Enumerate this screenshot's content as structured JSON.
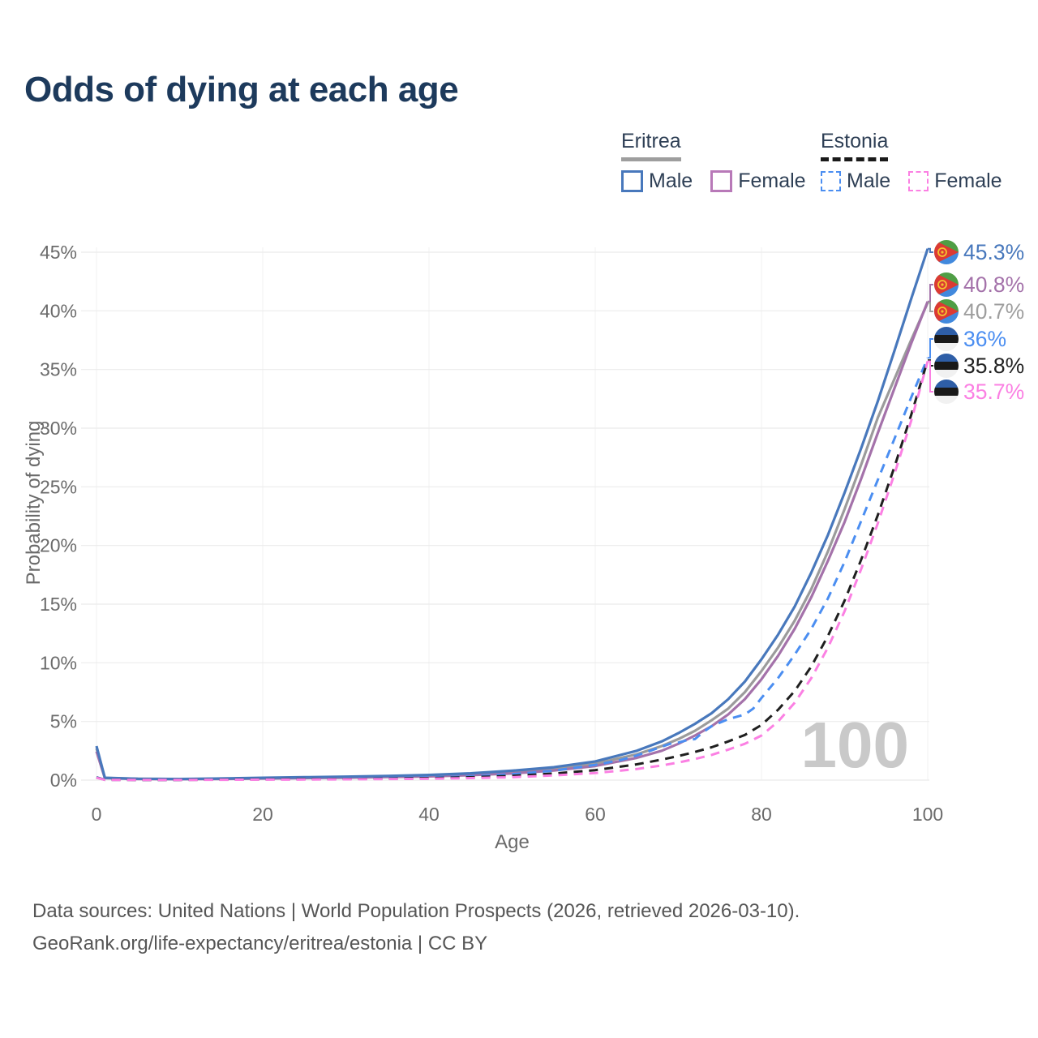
{
  "title": "Odds of dying at each age",
  "legend": {
    "groups": [
      {
        "country": "Eritrea",
        "line_style": "solid",
        "underline_color": "#9e9e9e",
        "items": [
          {
            "label": "Male",
            "color": "#4878bc",
            "dashed": false
          },
          {
            "label": "Female",
            "color": "#b879b8",
            "dashed": false
          }
        ]
      },
      {
        "country": "Estonia",
        "line_style": "dashed",
        "underline_color": "#1a1a1a",
        "items": [
          {
            "label": "Male",
            "color": "#4b8ef1",
            "dashed": true
          },
          {
            "label": "Female",
            "color": "#fb80e3",
            "dashed": true
          }
        ]
      }
    ]
  },
  "watermark": "100",
  "footer": {
    "line1": "Data sources: United Nations | World Population Prospects (2026, retrieved 2026-03-10).",
    "line2": "GeoRank.org/life-expectancy/eritrea/estonia | CC BY"
  },
  "chart_data": {
    "type": "line",
    "title": "Odds of dying at each age",
    "xlabel": "Age",
    "ylabel": "Probability of dying",
    "xlim": [
      0,
      100
    ],
    "ylim_pct": [
      0,
      45
    ],
    "x_ticks": [
      0,
      20,
      40,
      60,
      80,
      100
    ],
    "y_ticks_pct": [
      0,
      5,
      10,
      15,
      20,
      25,
      30,
      35,
      40,
      45
    ],
    "grid": "horizontal-strong-vertical-faint",
    "legend_position": "top-right",
    "series": [
      {
        "name": "Eritrea Both",
        "country": "Eritrea",
        "style": "solid",
        "color": "#9b9b9b",
        "points": [
          [
            0,
            2.7
          ],
          [
            1,
            0.19
          ],
          [
            5,
            0.11
          ],
          [
            10,
            0.09
          ],
          [
            15,
            0.12
          ],
          [
            20,
            0.17
          ],
          [
            25,
            0.21
          ],
          [
            30,
            0.26
          ],
          [
            35,
            0.31
          ],
          [
            40,
            0.38
          ],
          [
            45,
            0.5
          ],
          [
            50,
            0.68
          ],
          [
            55,
            0.95
          ],
          [
            60,
            1.4
          ],
          [
            65,
            2.2
          ],
          [
            68,
            2.9
          ],
          [
            70,
            3.5
          ],
          [
            72,
            4.2
          ],
          [
            74,
            5.1
          ],
          [
            76,
            6.1
          ],
          [
            78,
            7.5
          ],
          [
            80,
            9.3
          ],
          [
            82,
            11.3
          ],
          [
            84,
            13.6
          ],
          [
            86,
            16.3
          ],
          [
            88,
            19.5
          ],
          [
            90,
            23.1
          ],
          [
            92,
            26.9
          ],
          [
            94,
            30.9
          ],
          [
            96,
            34.2
          ],
          [
            98,
            37.5
          ],
          [
            100,
            40.7
          ]
        ]
      },
      {
        "name": "Eritrea Female",
        "country": "Eritrea",
        "style": "solid",
        "color": "#a472aa",
        "points": [
          [
            0,
            2.45
          ],
          [
            1,
            0.17
          ],
          [
            5,
            0.1
          ],
          [
            10,
            0.08
          ],
          [
            15,
            0.1
          ],
          [
            20,
            0.14
          ],
          [
            25,
            0.17
          ],
          [
            30,
            0.21
          ],
          [
            35,
            0.26
          ],
          [
            40,
            0.32
          ],
          [
            45,
            0.42
          ],
          [
            50,
            0.57
          ],
          [
            55,
            0.82
          ],
          [
            60,
            1.2
          ],
          [
            65,
            1.9
          ],
          [
            68,
            2.5
          ],
          [
            70,
            3.1
          ],
          [
            72,
            3.8
          ],
          [
            74,
            4.6
          ],
          [
            76,
            5.6
          ],
          [
            78,
            6.9
          ],
          [
            80,
            8.6
          ],
          [
            82,
            10.6
          ],
          [
            84,
            12.9
          ],
          [
            86,
            15.6
          ],
          [
            88,
            18.7
          ],
          [
            90,
            22.0
          ],
          [
            92,
            25.7
          ],
          [
            94,
            29.6
          ],
          [
            96,
            33.4
          ],
          [
            98,
            37.2
          ],
          [
            100,
            40.8
          ]
        ]
      },
      {
        "name": "Eritrea Male",
        "country": "Eritrea",
        "style": "solid",
        "color": "#4878bc",
        "points": [
          [
            0,
            2.9
          ],
          [
            1,
            0.2
          ],
          [
            5,
            0.12
          ],
          [
            10,
            0.1
          ],
          [
            15,
            0.14
          ],
          [
            20,
            0.2
          ],
          [
            25,
            0.25
          ],
          [
            30,
            0.3
          ],
          [
            35,
            0.36
          ],
          [
            40,
            0.44
          ],
          [
            45,
            0.58
          ],
          [
            50,
            0.8
          ],
          [
            55,
            1.1
          ],
          [
            60,
            1.6
          ],
          [
            65,
            2.5
          ],
          [
            68,
            3.3
          ],
          [
            70,
            4.0
          ],
          [
            72,
            4.8
          ],
          [
            74,
            5.7
          ],
          [
            76,
            6.9
          ],
          [
            78,
            8.4
          ],
          [
            80,
            10.3
          ],
          [
            82,
            12.4
          ],
          [
            84,
            14.8
          ],
          [
            86,
            17.7
          ],
          [
            88,
            20.9
          ],
          [
            90,
            24.5
          ],
          [
            92,
            28.3
          ],
          [
            94,
            32.3
          ],
          [
            96,
            36.6
          ],
          [
            98,
            41.0
          ],
          [
            100,
            45.3
          ]
        ]
      },
      {
        "name": "Estonia Male",
        "country": "Estonia",
        "style": "dashed",
        "color": "#4b8ef1",
        "points": [
          [
            0,
            0.25
          ],
          [
            1,
            0.03
          ],
          [
            5,
            0.02
          ],
          [
            10,
            0.02
          ],
          [
            15,
            0.05
          ],
          [
            20,
            0.08
          ],
          [
            25,
            0.1
          ],
          [
            30,
            0.13
          ],
          [
            35,
            0.17
          ],
          [
            40,
            0.22
          ],
          [
            45,
            0.32
          ],
          [
            50,
            0.5
          ],
          [
            55,
            0.8
          ],
          [
            60,
            1.3
          ],
          [
            63,
            1.7
          ],
          [
            65,
            2.1
          ],
          [
            67,
            2.6
          ],
          [
            69,
            3.1
          ],
          [
            70,
            3.2
          ],
          [
            71,
            3.4
          ],
          [
            72,
            3.5
          ],
          [
            73,
            4.1
          ],
          [
            74,
            4.6
          ],
          [
            75,
            4.9
          ],
          [
            76,
            5.2
          ],
          [
            77,
            5.4
          ],
          [
            78,
            5.6
          ],
          [
            79,
            6.1
          ],
          [
            80,
            7.0
          ],
          [
            82,
            8.7
          ],
          [
            84,
            10.7
          ],
          [
            86,
            12.9
          ],
          [
            88,
            15.5
          ],
          [
            90,
            18.6
          ],
          [
            92,
            22.1
          ],
          [
            94,
            25.6
          ],
          [
            96,
            29.1
          ],
          [
            98,
            32.6
          ],
          [
            100,
            36.0
          ]
        ]
      },
      {
        "name": "Estonia Both",
        "country": "Estonia",
        "style": "dashed",
        "color": "#1f1f1f",
        "points": [
          [
            0,
            0.22
          ],
          [
            1,
            0.03
          ],
          [
            5,
            0.02
          ],
          [
            10,
            0.02
          ],
          [
            15,
            0.04
          ],
          [
            20,
            0.06
          ],
          [
            25,
            0.08
          ],
          [
            30,
            0.1
          ],
          [
            35,
            0.13
          ],
          [
            40,
            0.17
          ],
          [
            45,
            0.24
          ],
          [
            50,
            0.36
          ],
          [
            55,
            0.56
          ],
          [
            60,
            0.85
          ],
          [
            65,
            1.35
          ],
          [
            68,
            1.75
          ],
          [
            70,
            2.05
          ],
          [
            72,
            2.4
          ],
          [
            74,
            2.8
          ],
          [
            76,
            3.3
          ],
          [
            78,
            3.85
          ],
          [
            80,
            4.7
          ],
          [
            82,
            6.0
          ],
          [
            84,
            7.6
          ],
          [
            86,
            9.7
          ],
          [
            88,
            12.3
          ],
          [
            90,
            15.3
          ],
          [
            92,
            18.8
          ],
          [
            94,
            22.6
          ],
          [
            96,
            26.7
          ],
          [
            98,
            31.1
          ],
          [
            100,
            35.8
          ]
        ]
      },
      {
        "name": "Estonia Female",
        "country": "Estonia",
        "style": "dashed",
        "color": "#fb80e3",
        "points": [
          [
            0,
            0.2
          ],
          [
            1,
            0.02
          ],
          [
            5,
            0.015
          ],
          [
            10,
            0.015
          ],
          [
            15,
            0.03
          ],
          [
            20,
            0.04
          ],
          [
            25,
            0.05
          ],
          [
            30,
            0.07
          ],
          [
            35,
            0.09
          ],
          [
            40,
            0.12
          ],
          [
            45,
            0.17
          ],
          [
            50,
            0.25
          ],
          [
            55,
            0.4
          ],
          [
            60,
            0.6
          ],
          [
            65,
            0.95
          ],
          [
            68,
            1.25
          ],
          [
            70,
            1.5
          ],
          [
            72,
            1.8
          ],
          [
            74,
            2.15
          ],
          [
            76,
            2.6
          ],
          [
            78,
            3.1
          ],
          [
            80,
            3.8
          ],
          [
            82,
            5.0
          ],
          [
            84,
            6.6
          ],
          [
            86,
            8.7
          ],
          [
            88,
            11.3
          ],
          [
            90,
            14.4
          ],
          [
            92,
            18.0
          ],
          [
            94,
            21.9
          ],
          [
            96,
            26.1
          ],
          [
            98,
            30.6
          ],
          [
            100,
            35.7
          ]
        ]
      }
    ],
    "end_labels": [
      {
        "series": "Eritrea Male",
        "flag": "eritrea",
        "label": "45.3%",
        "color": "#4878bc"
      },
      {
        "series": "Eritrea Female",
        "flag": "eritrea",
        "label": "40.8%",
        "color": "#a472aa"
      },
      {
        "series": "Eritrea Both",
        "flag": "eritrea",
        "label": "40.7%",
        "color": "#9e9e9e"
      },
      {
        "series": "Estonia Male",
        "flag": "estonia",
        "label": "36%",
        "color": "#4b8ef1"
      },
      {
        "series": "Estonia Both",
        "flag": "estonia",
        "label": "35.8%",
        "color": "#222222"
      },
      {
        "series": "Estonia Female",
        "flag": "estonia",
        "label": "35.7%",
        "color": "#fb80e3"
      }
    ],
    "flag_colors": {
      "eritrea": {
        "green": "#4f9e45",
        "blue": "#4189dd",
        "red": "#dc3a33",
        "gold": "#f4c430"
      },
      "estonia": {
        "blue": "#2e5ea7",
        "black": "#191919",
        "white": "#f1f1f1"
      }
    }
  }
}
